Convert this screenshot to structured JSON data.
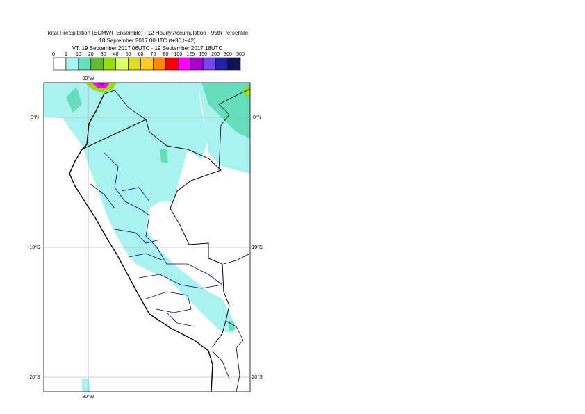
{
  "header": {
    "title": "Total Precipitation (ECMWF Ensemble) - 12 Hourly Accumulation - 95th Percentile",
    "base_time": "18 September 2017 00UTC (t+30,t+42)",
    "valid_time": "VT: 19 September 2017 06UTC - 19 September 2017 18UTC"
  },
  "legend": {
    "labels": [
      0,
      1,
      10,
      20,
      30,
      40,
      50,
      60,
      70,
      80,
      100,
      125,
      150,
      200,
      300,
      500
    ],
    "colors": [
      "#ffffff",
      "#aaf2f0",
      "#66ddbb",
      "#66bb33",
      "#99dd11",
      "#ddff66",
      "#dddd22",
      "#ffcc22",
      "#ff8800",
      "#ff0000",
      "#ff00ff",
      "#aa00cc",
      "#7744ee",
      "#2222aa",
      "#111155"
    ]
  },
  "map": {
    "lat_labels": [
      "0°N",
      "10°S",
      "20°S"
    ],
    "lon_labels": [
      "80°W",
      "80°W"
    ]
  }
}
